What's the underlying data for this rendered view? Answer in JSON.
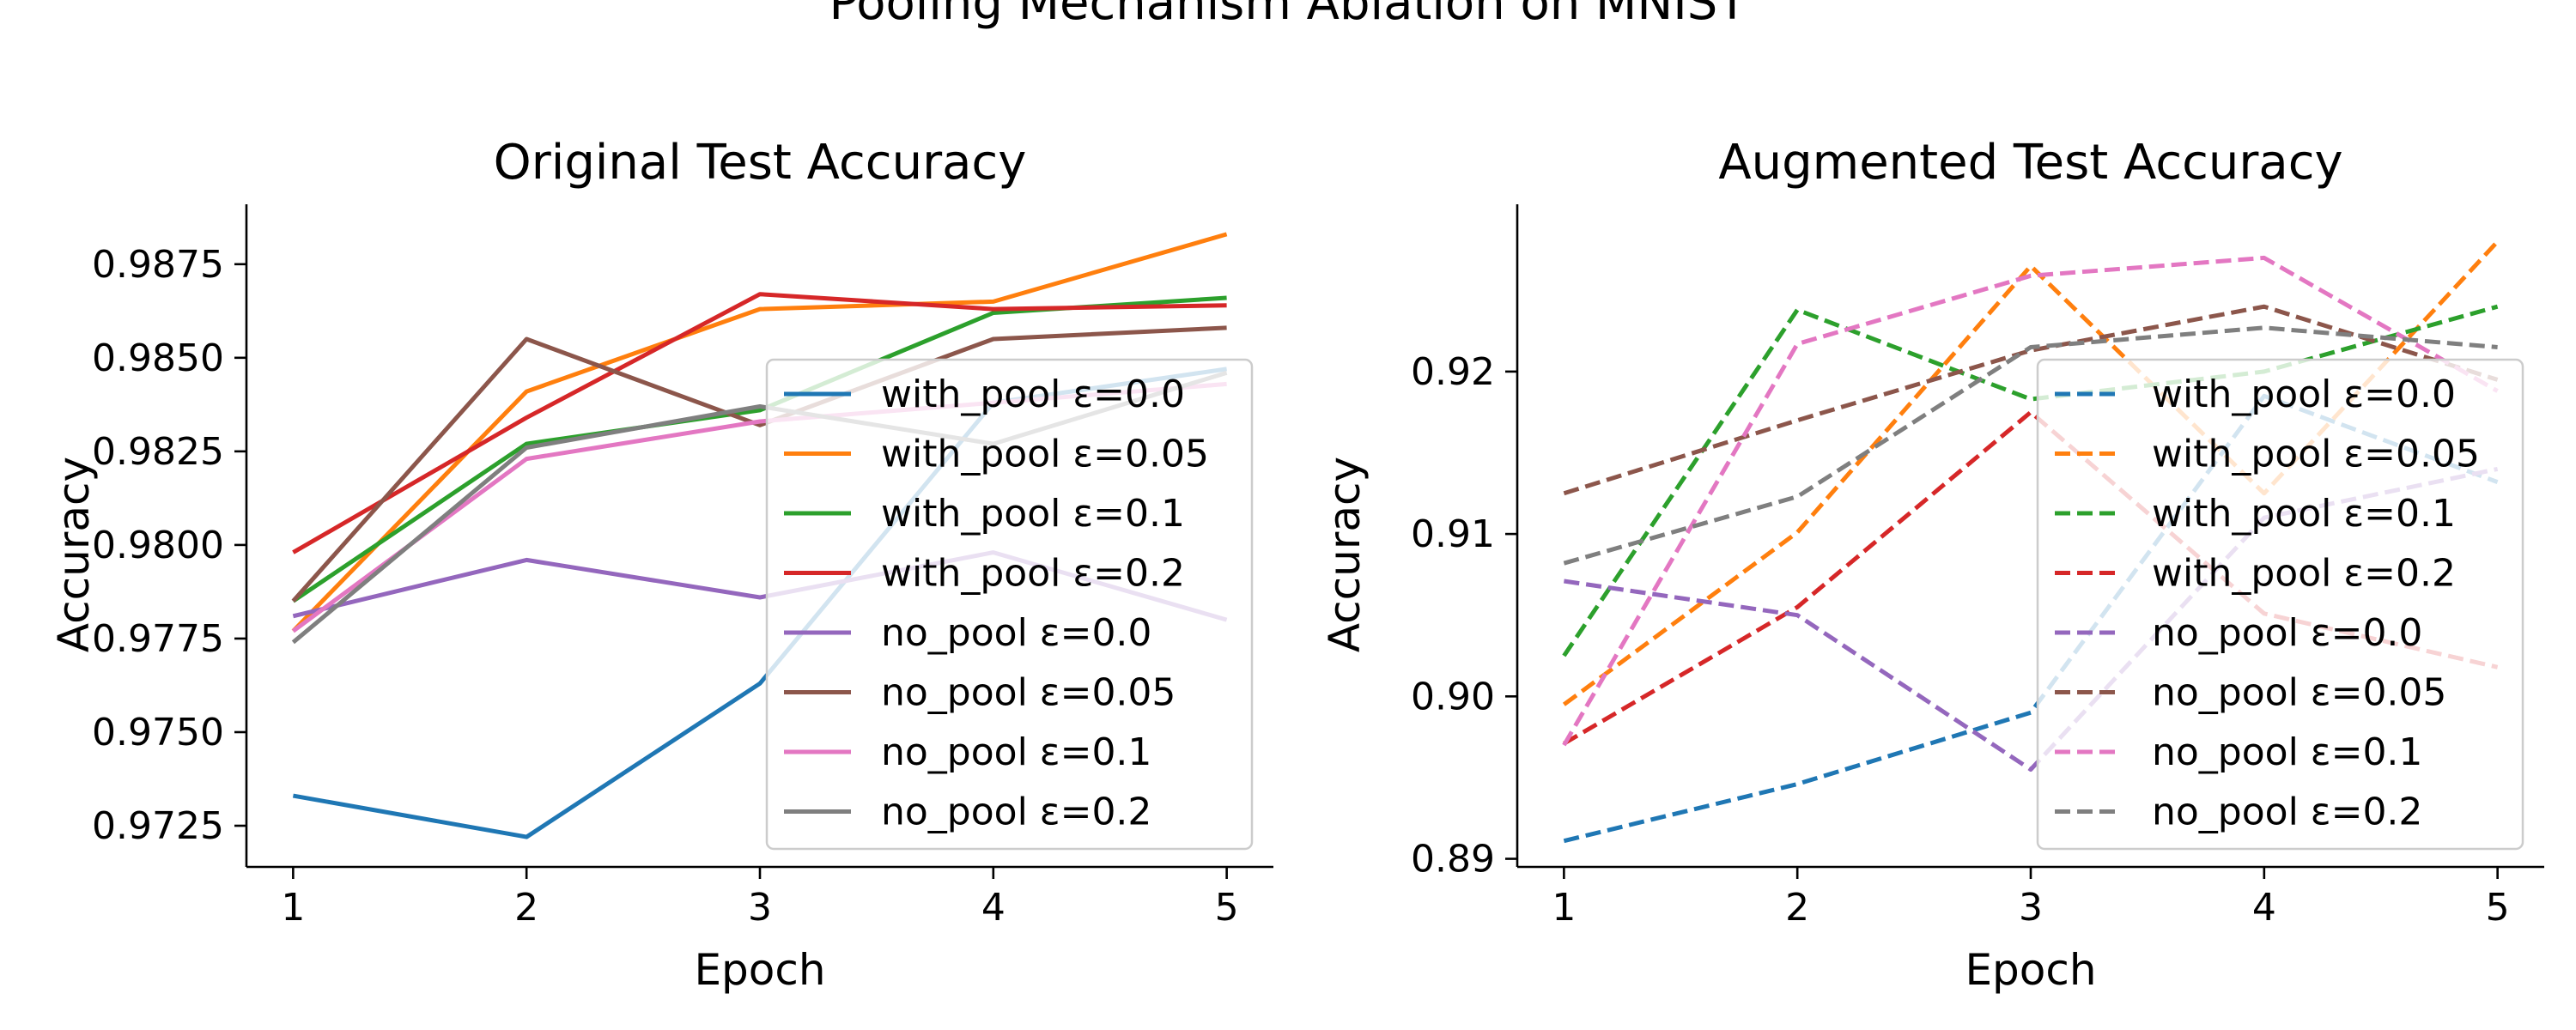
{
  "figure": {
    "title": "Pooling Mechanism Ablation on MNIST"
  },
  "chart_data": [
    {
      "type": "line",
      "title": "Original Test Accuracy",
      "xlabel": "Epoch",
      "ylabel": "Accuracy",
      "x": [
        1,
        2,
        3,
        4,
        5
      ],
      "xticks": [
        "1",
        "2",
        "3",
        "4",
        "5"
      ],
      "yticks": [
        "0.9725",
        "0.9750",
        "0.9775",
        "0.9800",
        "0.9825",
        "0.9850",
        "0.9875"
      ],
      "xlim": [
        0.8,
        5.2
      ],
      "ylim": [
        0.9714,
        0.9891
      ],
      "line_style": "solid",
      "legend_position": "right",
      "series": [
        {
          "name": "with_pool ε=0.0",
          "color": "#1f77b4",
          "values": [
            0.9733,
            0.9722,
            0.9763,
            0.9838,
            0.9847
          ]
        },
        {
          "name": "with_pool ε=0.05",
          "color": "#ff7f0e",
          "values": [
            0.9777,
            0.9841,
            0.9863,
            0.9865,
            0.9883
          ]
        },
        {
          "name": "with_pool ε=0.1",
          "color": "#2ca02c",
          "values": [
            0.9785,
            0.9827,
            0.9836,
            0.9862,
            0.9866
          ]
        },
        {
          "name": "with_pool ε=0.2",
          "color": "#d62728",
          "values": [
            0.9798,
            0.9834,
            0.9867,
            0.9863,
            0.9864
          ]
        },
        {
          "name": "no_pool ε=0.0",
          "color": "#9467bd",
          "values": [
            0.9781,
            0.9796,
            0.9786,
            0.9798,
            0.978
          ]
        },
        {
          "name": "no_pool ε=0.05",
          "color": "#8c564b",
          "values": [
            0.9785,
            0.9855,
            0.9832,
            0.9855,
            0.9858
          ]
        },
        {
          "name": "no_pool ε=0.1",
          "color": "#e377c2",
          "values": [
            0.9777,
            0.9823,
            0.9833,
            0.9838,
            0.9843
          ]
        },
        {
          "name": "no_pool ε=0.2",
          "color": "#7f7f7f",
          "values": [
            0.9774,
            0.9826,
            0.9837,
            0.9827,
            0.9846
          ]
        }
      ]
    },
    {
      "type": "line",
      "title": "Augmented Test Accuracy",
      "xlabel": "Epoch",
      "ylabel": "Accuracy",
      "x": [
        1,
        2,
        3,
        4,
        5
      ],
      "xticks": [
        "1",
        "2",
        "3",
        "4",
        "5"
      ],
      "yticks": [
        "0.89",
        "0.90",
        "0.91",
        "0.92"
      ],
      "xlim": [
        0.8,
        5.2
      ],
      "ylim": [
        0.8895,
        0.9303
      ],
      "line_style": "dashed",
      "legend_position": "right",
      "series": [
        {
          "name": "with_pool ε=0.0",
          "color": "#1f77b4",
          "values": [
            0.8911,
            0.8946,
            0.899,
            0.9185,
            0.9132
          ]
        },
        {
          "name": "with_pool ε=0.05",
          "color": "#ff7f0e",
          "values": [
            0.8995,
            0.9101,
            0.9265,
            0.9125,
            0.928
          ]
        },
        {
          "name": "with_pool ε=0.1",
          "color": "#2ca02c",
          "values": [
            0.9025,
            0.9238,
            0.9183,
            0.92,
            0.924
          ]
        },
        {
          "name": "with_pool ε=0.2",
          "color": "#d62728",
          "values": [
            0.8971,
            0.9055,
            0.9175,
            0.9051,
            0.9018
          ]
        },
        {
          "name": "no_pool ε=0.0",
          "color": "#9467bd",
          "values": [
            0.9071,
            0.905,
            0.8955,
            0.911,
            0.914
          ]
        },
        {
          "name": "no_pool ε=0.05",
          "color": "#8c564b",
          "values": [
            0.9125,
            0.917,
            0.9213,
            0.924,
            0.9195
          ]
        },
        {
          "name": "no_pool ε=0.1",
          "color": "#e377c2",
          "values": [
            0.897,
            0.9217,
            0.9259,
            0.927,
            0.9188
          ]
        },
        {
          "name": "no_pool ε=0.2",
          "color": "#7f7f7f",
          "values": [
            0.9082,
            0.9123,
            0.9215,
            0.9227,
            0.9215
          ]
        }
      ]
    }
  ]
}
